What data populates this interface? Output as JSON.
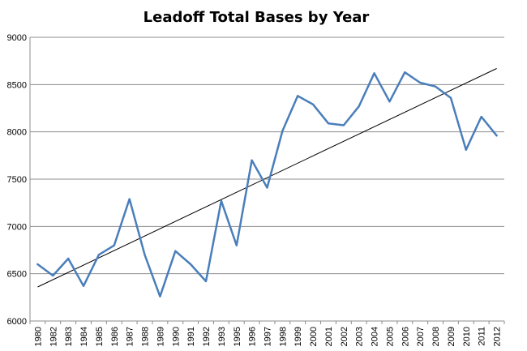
{
  "chart_data": {
    "type": "line",
    "title": "Leadoff Total Bases by Year",
    "xlabel": "",
    "ylabel": "",
    "ylim": [
      6000,
      9000
    ],
    "yticks": [
      6000,
      6500,
      7000,
      7500,
      8000,
      8500,
      9000
    ],
    "grid": true,
    "legend": "none",
    "categories": [
      "1980",
      "1982",
      "1983",
      "1984",
      "1985",
      "1986",
      "1987",
      "1988",
      "1989",
      "1990",
      "1991",
      "1992",
      "1993",
      "1995",
      "1996",
      "1997",
      "1998",
      "1999",
      "2000",
      "2001",
      "2002",
      "2003",
      "2004",
      "2005",
      "2006",
      "2007",
      "2008",
      "2009",
      "2010",
      "2011",
      "2012"
    ],
    "series": [
      {
        "values": [
          6600,
          6480,
          6660,
          6370,
          6700,
          6800,
          7290,
          6700,
          6260,
          6740,
          6600,
          6420,
          7270,
          6800,
          7700,
          7410,
          8010,
          8380,
          8290,
          8090,
          8070,
          8270,
          8620,
          8320,
          8630,
          8520,
          8480,
          8360,
          7810,
          8160,
          7960
        ],
        "color": "#4a7ebb"
      }
    ],
    "trendline": {
      "start": 6360,
      "end": 8670,
      "color": "#000000"
    }
  }
}
